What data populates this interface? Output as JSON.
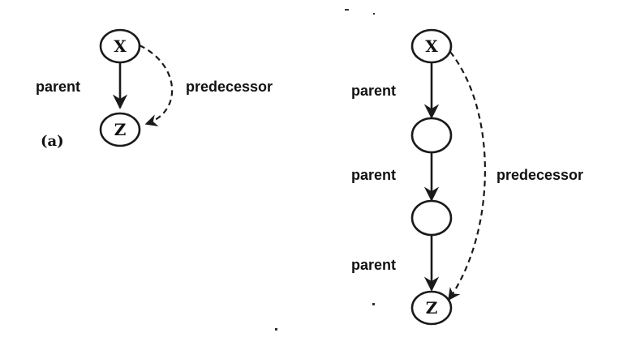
{
  "diagram_a": {
    "panel_label": "(a)",
    "nodes": {
      "x": "X",
      "z": "Z"
    },
    "edge_labels": {
      "parent": "parent",
      "predecessor": "predecessor"
    }
  },
  "diagram_b": {
    "nodes": {
      "x": "X",
      "mid1": "",
      "mid2": "",
      "z": "Z"
    },
    "edge_labels": {
      "parent_1": "parent",
      "parent_2": "parent",
      "parent_3": "parent",
      "predecessor": "predecessor"
    }
  },
  "colors": {
    "ink": "#1a1a1a",
    "background": "#ffffff"
  }
}
